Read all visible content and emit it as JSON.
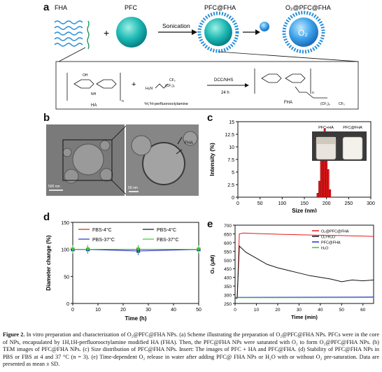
{
  "panels": {
    "a": "a",
    "b": "b",
    "c": "c",
    "d": "d",
    "e": "e"
  },
  "scheme": {
    "fha_label": "FHA",
    "pfc_label": "PFC",
    "pfcfha_label": "PFC@FHA",
    "o2pfcfha_label": "O₂@PFC@FHA",
    "plus": "+",
    "sonication": "Sonication",
    "o2_text": "O₂",
    "ha_label": "HA",
    "reagent_label": "¹H,¹H-perfluorooctylamine",
    "dcc_label": "DCC/NHS",
    "time_label": "24 h",
    "fha_product": "FHA",
    "h2n": "H₂N",
    "cf2_6": "(CF₂)₆",
    "cf3": "CF₃",
    "n": "n",
    "oh": "OH",
    "nh": "NH",
    "o": "O"
  },
  "tem": {
    "scale1": "500 nm",
    "scale2": "50 nm",
    "fha_label": "FHA"
  },
  "colors": {
    "teal": "#1bb8b3",
    "blue": "#3aa0e8",
    "bar": "#e41a1c"
  },
  "chart_data": [
    {
      "type": "bar",
      "xlabel": "Size (nm)",
      "ylabel": "Intensity (%)",
      "xlim": [
        0,
        300
      ],
      "ylim": [
        0,
        15
      ],
      "xticks": [
        0,
        50,
        100,
        150,
        200,
        250,
        300
      ],
      "yticks": [
        0,
        2.5,
        5,
        7.5,
        10,
        12.5,
        15
      ],
      "ytick_labels": [
        "0",
        "2.5",
        "5",
        "7.5",
        "10",
        "12.5",
        "15"
      ],
      "x": [
        180,
        184,
        188,
        192,
        196,
        200,
        204,
        208
      ],
      "values": [
        0.8,
        3.2,
        7.5,
        12.5,
        13.6,
        10.5,
        5.5,
        1.5
      ],
      "inset_labels": [
        "PFC+HA",
        "PFC@FHA"
      ]
    },
    {
      "type": "line",
      "xlabel": "Time (h)",
      "ylabel": "Diameter change (%)",
      "xlim": [
        0,
        50
      ],
      "ylim": [
        0,
        150
      ],
      "xticks": [
        0,
        10,
        20,
        30,
        40,
        50
      ],
      "yticks": [
        0,
        50,
        100,
        150
      ],
      "series": [
        {
          "name": "FBS-4°C",
          "color": "#e41a1c",
          "marker": "square",
          "x": [
            0,
            6,
            26,
            50
          ],
          "values": [
            100,
            100,
            100,
            100
          ]
        },
        {
          "name": "PBS-4°C",
          "color": "#111111",
          "marker": "circle",
          "x": [
            0,
            6,
            26,
            50
          ],
          "values": [
            100,
            100,
            100,
            100
          ]
        },
        {
          "name": "PBS-37°C",
          "color": "#2233cc",
          "marker": "triangle",
          "x": [
            0,
            6,
            26,
            50
          ],
          "values": [
            100,
            100,
            97,
            100
          ]
        },
        {
          "name": "FBS-37°C",
          "color": "#33cc33",
          "marker": "triangle-down",
          "x": [
            0,
            6,
            26,
            50
          ],
          "values": [
            100,
            100,
            100,
            100
          ]
        }
      ]
    },
    {
      "type": "line",
      "xlabel": "Time (min)",
      "ylabel": "O₂ (μM)",
      "xlim": [
        0,
        65
      ],
      "ylim": [
        250,
        700
      ],
      "xticks": [
        0,
        10,
        20,
        30,
        40,
        50,
        60
      ],
      "yticks": [
        250,
        300,
        350,
        400,
        450,
        500,
        550,
        600,
        650,
        700
      ],
      "series": [
        {
          "name": "O₂@PFC@FHA",
          "color": "#e41a1c",
          "x": [
            0,
            1,
            2,
            4,
            10,
            20,
            30,
            40,
            50,
            60,
            65
          ],
          "values": [
            280,
            280,
            650,
            655,
            652,
            648,
            645,
            642,
            640,
            637,
            635
          ]
        },
        {
          "name": "O₂+H₂O",
          "color": "#111111",
          "x": [
            0,
            1,
            2,
            5,
            10,
            15,
            20,
            25,
            30,
            35,
            40,
            45,
            50,
            55,
            60,
            65
          ],
          "values": [
            280,
            280,
            580,
            545,
            510,
            475,
            455,
            440,
            425,
            410,
            400,
            390,
            375,
            385,
            380,
            385
          ]
        },
        {
          "name": "PFC@FHA",
          "color": "#2233cc",
          "x": [
            0,
            65
          ],
          "values": [
            285,
            287
          ]
        },
        {
          "name": "H₂O",
          "color": "#33cc33",
          "x": [
            0,
            65
          ],
          "values": [
            283,
            284
          ]
        }
      ]
    }
  ],
  "caption": {
    "lead": "Figure 2.",
    "body": "In vitro preparation and characterization of O₂@PFC@FHA NPs. (a) Scheme illustrating the preparation of O₂@PFC@FHA NPs. PFCs were in the core of NPs, encapsulated by 1H,1H-perfluorooctylamine modified HA (FHA). Then, the PFC@FHA NPs were saturated with O₂ to form O₂@PFC@FHA NPs. (b) TEM images of PFC@FHA NPs. (c) Size distribution of PFC@FHA NPs. Insert: The images of PFC + HA and PFC@FHA. (d) Stability of PFC@FHA NPs in PBS or FBS at 4 and 37 °C (n = 3). (e) Time-dependent O₂ release in water after adding PFC@ FHA NPs or H₂O with or without O₂ pre-saturation. Data are presented as mean ± SD."
  }
}
